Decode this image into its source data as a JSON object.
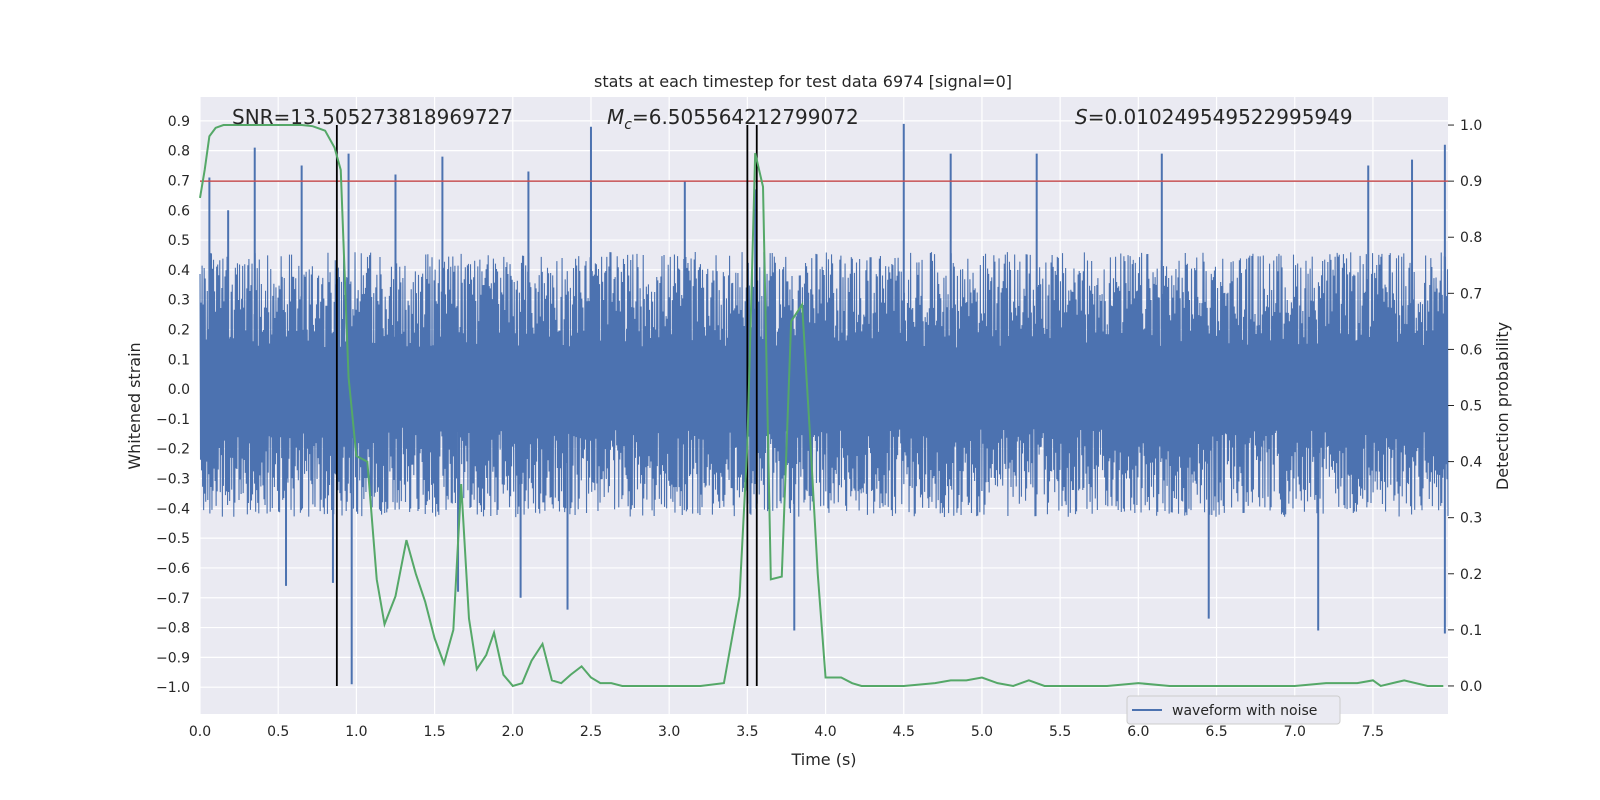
{
  "chart_data": {
    "type": "line",
    "title": "stats at each timestep for test data 6974 [signal=0]",
    "xlabel": "Time (s)",
    "ylabel_left": "Whitened strain",
    "ylabel_right": "Detection probability",
    "xlim": [
      0.0,
      7.98
    ],
    "ylim_left": [
      -1.09,
      0.98
    ],
    "ylim_right": [
      -0.05,
      1.05
    ],
    "x_ticks": [
      "0.0",
      "0.5",
      "1.0",
      "1.5",
      "2.0",
      "2.5",
      "3.0",
      "3.5",
      "4.0",
      "4.5",
      "5.0",
      "5.5",
      "6.0",
      "6.5",
      "7.0",
      "7.5"
    ],
    "x_tick_values": [
      0.0,
      0.5,
      1.0,
      1.5,
      2.0,
      2.5,
      3.0,
      3.5,
      4.0,
      4.5,
      5.0,
      5.5,
      6.0,
      6.5,
      7.0,
      7.5
    ],
    "y_ticks_left": [
      "0.9",
      "0.8",
      "0.7",
      "0.6",
      "0.5",
      "0.4",
      "0.3",
      "0.2",
      "0.1",
      "0.0",
      "−0.1",
      "−0.2",
      "−0.3",
      "−0.4",
      "−0.5",
      "−0.6",
      "−0.7",
      "−0.8",
      "−0.9",
      "−1.0"
    ],
    "y_tick_values_left": [
      0.9,
      0.8,
      0.7,
      0.6,
      0.5,
      0.4,
      0.3,
      0.2,
      0.1,
      0.0,
      -0.1,
      -0.2,
      -0.3,
      -0.4,
      -0.5,
      -0.6,
      -0.7,
      -0.8,
      -0.9,
      -1.0
    ],
    "y_ticks_right": [
      "1.0",
      "0.9",
      "0.8",
      "0.7",
      "0.6",
      "0.5",
      "0.4",
      "0.3",
      "0.2",
      "0.1",
      "0.0"
    ],
    "y_tick_values_right": [
      1.0,
      0.9,
      0.8,
      0.7,
      0.6,
      0.5,
      0.4,
      0.3,
      0.2,
      0.1,
      0.0
    ],
    "annotations": {
      "snr_label": "SNR=13.505273818969727",
      "mc_symbol": "M",
      "mc_sub": "c",
      "mc_value": "=6.505564212799072",
      "s_symbol": "S",
      "s_value": "=0.010249549522995949"
    },
    "vertical_lines_s": [
      0.875,
      3.5,
      3.56
    ],
    "threshold": {
      "value_right": 0.9,
      "color": "#c44e52"
    },
    "waveform": {
      "name": "waveform with noise",
      "color": "#4c72b0",
      "typical_abs_min": -0.43,
      "typical_abs_max": 0.46,
      "spikes": [
        {
          "t": 0.06,
          "v": 0.71
        },
        {
          "t": 0.18,
          "v": 0.6
        },
        {
          "t": 0.35,
          "v": 0.81
        },
        {
          "t": 0.65,
          "v": 0.75
        },
        {
          "t": 0.95,
          "v": 0.79
        },
        {
          "t": 0.97,
          "v": -0.99
        },
        {
          "t": 1.25,
          "v": 0.72
        },
        {
          "t": 1.55,
          "v": 0.78
        },
        {
          "t": 2.1,
          "v": 0.73
        },
        {
          "t": 2.5,
          "v": 0.88
        },
        {
          "t": 3.1,
          "v": 0.7
        },
        {
          "t": 3.55,
          "v": 0.67
        },
        {
          "t": 3.8,
          "v": -0.81
        },
        {
          "t": 4.5,
          "v": 0.89
        },
        {
          "t": 4.8,
          "v": 0.79
        },
        {
          "t": 5.35,
          "v": 0.79
        },
        {
          "t": 6.15,
          "v": 0.79
        },
        {
          "t": 6.45,
          "v": -0.77
        },
        {
          "t": 7.15,
          "v": -0.81
        },
        {
          "t": 7.47,
          "v": 0.75
        },
        {
          "t": 7.75,
          "v": 0.77
        },
        {
          "t": 7.96,
          "v": 0.82
        },
        {
          "t": 7.96,
          "v": -0.82
        },
        {
          "t": 0.55,
          "v": -0.66
        },
        {
          "t": 0.85,
          "v": -0.65
        },
        {
          "t": 1.65,
          "v": -0.68
        },
        {
          "t": 2.05,
          "v": -0.7
        },
        {
          "t": 2.35,
          "v": -0.74
        }
      ]
    },
    "probability": {
      "color": "#55a868",
      "t": [
        0.0,
        0.03,
        0.06,
        0.1,
        0.15,
        0.25,
        0.35,
        0.45,
        0.55,
        0.65,
        0.72,
        0.8,
        0.86,
        0.9,
        0.95,
        1.0,
        1.07,
        1.13,
        1.18,
        1.25,
        1.32,
        1.38,
        1.44,
        1.5,
        1.56,
        1.62,
        1.67,
        1.72,
        1.77,
        1.83,
        1.88,
        1.94,
        2.0,
        2.06,
        2.12,
        2.19,
        2.25,
        2.31,
        2.37,
        2.44,
        2.5,
        2.56,
        2.63,
        2.7,
        2.8,
        3.0,
        3.2,
        3.35,
        3.45,
        3.5,
        3.55,
        3.6,
        3.65,
        3.72,
        3.78,
        3.85,
        3.9,
        3.95,
        4.0,
        4.1,
        4.17,
        4.23,
        4.3,
        4.5,
        4.7,
        4.8,
        4.9,
        5.0,
        5.1,
        5.2,
        5.3,
        5.4,
        5.5,
        5.6,
        5.8,
        6.0,
        6.2,
        6.5,
        6.8,
        7.0,
        7.2,
        7.4,
        7.5,
        7.55,
        7.7,
        7.85,
        7.95
      ],
      "p": [
        0.87,
        0.92,
        0.98,
        0.995,
        1.0,
        1.0,
        1.0,
        1.0,
        1.0,
        1.0,
        0.998,
        0.99,
        0.96,
        0.92,
        0.55,
        0.41,
        0.4,
        0.19,
        0.11,
        0.16,
        0.26,
        0.2,
        0.15,
        0.085,
        0.04,
        0.1,
        0.36,
        0.12,
        0.03,
        0.055,
        0.095,
        0.02,
        0.0,
        0.005,
        0.045,
        0.075,
        0.01,
        0.005,
        0.02,
        0.035,
        0.015,
        0.005,
        0.005,
        0.0,
        0.0,
        0.0,
        0.0,
        0.005,
        0.16,
        0.43,
        0.95,
        0.89,
        0.19,
        0.195,
        0.65,
        0.68,
        0.45,
        0.2,
        0.015,
        0.015,
        0.005,
        0.0,
        0.0,
        0.0,
        0.005,
        0.01,
        0.01,
        0.015,
        0.005,
        0.0,
        0.01,
        0.0,
        0.0,
        0.0,
        0.0,
        0.005,
        0.0,
        0.0,
        0.0,
        0.0,
        0.005,
        0.005,
        0.01,
        0.0,
        0.01,
        0.0,
        0.0
      ]
    },
    "legend": {
      "position": "bottom-right",
      "label": "waveform with noise"
    }
  }
}
